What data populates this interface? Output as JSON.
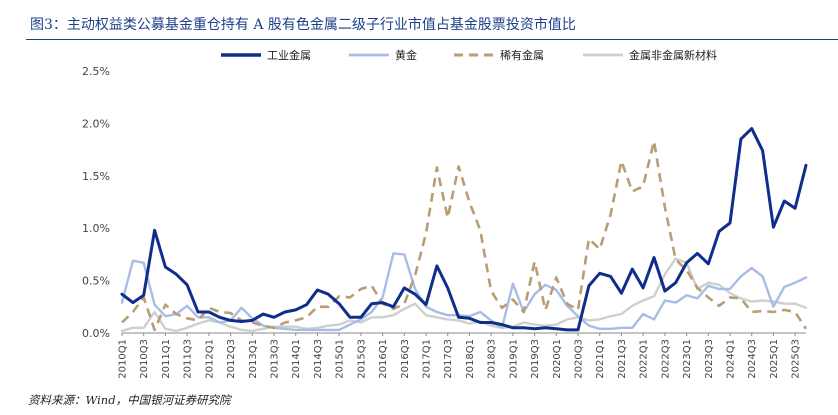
{
  "title": "图3：主动权益类公募基金重仓持有 A 股有色金属二级子行业市值占基金股票投资市值比",
  "source": "资料来源：Wind，中国银河证券研究院",
  "colors": {
    "industrial": "#0f2d8a",
    "gold": "#a8bde6",
    "rare": "#b99d74",
    "nonferrous": "#cfcfcf",
    "title": "#1f3f8a",
    "axis_text": "#444444"
  },
  "chart_data": {
    "type": "line",
    "title": "",
    "xlabel": "",
    "ylabel": "",
    "ylim": [
      0,
      2.5
    ],
    "yticks": [
      "0.0%",
      "0.5%",
      "1.0%",
      "1.5%",
      "2.0%",
      "2.5%"
    ],
    "xtick_labels": [
      "2010Q1",
      "2010Q3",
      "2011Q1",
      "2011Q3",
      "2012Q1",
      "2012Q3",
      "2013Q1",
      "2013Q3",
      "2014Q1",
      "2014Q3",
      "2015Q1",
      "2015Q3",
      "2016Q1",
      "2016Q3",
      "2017Q1",
      "2017Q3",
      "2018Q1",
      "2018Q3",
      "2019Q1",
      "2019Q3",
      "2020Q1",
      "2020Q3",
      "2021Q1",
      "2021Q3",
      "2022Q1",
      "2022Q3",
      "2023Q1",
      "2023Q3",
      "2024Q1",
      "2024Q3",
      "2025Q1",
      "2025Q3"
    ],
    "legend_position": "top",
    "series": [
      {
        "name": "工业金属",
        "style": "solid-thick",
        "values": [
          0.37,
          0.29,
          0.36,
          0.98,
          0.63,
          0.56,
          0.46,
          0.2,
          0.2,
          0.15,
          0.12,
          0.11,
          0.12,
          0.18,
          0.15,
          0.2,
          0.22,
          0.27,
          0.41,
          0.37,
          0.28,
          0.15,
          0.15,
          0.28,
          0.29,
          0.25,
          0.43,
          0.37,
          0.27,
          0.64,
          0.43,
          0.15,
          0.14,
          0.1,
          0.1,
          0.08,
          0.05,
          0.05,
          0.04,
          0.05,
          0.04,
          0.03,
          0.03,
          0.45,
          0.57,
          0.54,
          0.38,
          0.61,
          0.43,
          0.72,
          0.4,
          0.48,
          0.67,
          0.76,
          0.66,
          0.97,
          1.05,
          1.85,
          1.95,
          1.74,
          1.01,
          1.26,
          1.19,
          1.6
        ]
      },
      {
        "name": "黄金",
        "style": "solid",
        "values": [
          0.29,
          0.69,
          0.67,
          0.27,
          0.16,
          0.18,
          0.26,
          0.15,
          0.15,
          0.1,
          0.12,
          0.24,
          0.14,
          0.07,
          0.05,
          0.04,
          0.03,
          0.03,
          0.03,
          0.03,
          0.03,
          0.08,
          0.13,
          0.2,
          0.34,
          0.76,
          0.75,
          0.42,
          0.25,
          0.2,
          0.17,
          0.17,
          0.16,
          0.2,
          0.12,
          0.05,
          0.47,
          0.2,
          0.37,
          0.46,
          0.41,
          0.26,
          0.16,
          0.07,
          0.04,
          0.04,
          0.05,
          0.05,
          0.18,
          0.13,
          0.31,
          0.29,
          0.36,
          0.33,
          0.45,
          0.42,
          0.42,
          0.54,
          0.62,
          0.54,
          0.25,
          0.44,
          0.48,
          0.53
        ]
      },
      {
        "name": "稀有金属",
        "style": "dashed",
        "values": [
          0.1,
          0.2,
          0.34,
          0.03,
          0.27,
          0.18,
          0.14,
          0.12,
          0.24,
          0.2,
          0.19,
          0.12,
          0.1,
          0.07,
          0.05,
          0.1,
          0.12,
          0.15,
          0.25,
          0.25,
          0.35,
          0.34,
          0.42,
          0.45,
          0.28,
          0.23,
          0.28,
          0.55,
          0.95,
          1.58,
          1.1,
          1.59,
          1.25,
          0.98,
          0.4,
          0.24,
          0.32,
          0.2,
          0.68,
          0.22,
          0.53,
          0.28,
          0.22,
          0.9,
          0.8,
          1.13,
          1.64,
          1.35,
          1.4,
          1.83,
          1.2,
          0.7,
          0.6,
          0.43,
          0.34,
          0.26,
          0.34,
          0.33,
          0.2,
          0.21,
          0.2,
          0.22,
          0.2,
          0.04
        ]
      },
      {
        "name": "金属非金属新材料",
        "style": "solid",
        "values": [
          0.02,
          0.05,
          0.05,
          0.2,
          0.04,
          0.02,
          0.05,
          0.09,
          0.12,
          0.1,
          0.06,
          0.03,
          0.02,
          0.04,
          0.06,
          0.06,
          0.06,
          0.04,
          0.05,
          0.07,
          0.08,
          0.12,
          0.1,
          0.15,
          0.15,
          0.17,
          0.23,
          0.28,
          0.17,
          0.15,
          0.13,
          0.12,
          0.09,
          0.11,
          0.07,
          0.05,
          0.06,
          0.1,
          0.08,
          0.07,
          0.08,
          0.13,
          0.15,
          0.12,
          0.13,
          0.16,
          0.18,
          0.26,
          0.31,
          0.35,
          0.56,
          0.71,
          0.67,
          0.42,
          0.48,
          0.46,
          0.38,
          0.33,
          0.3,
          0.31,
          0.3,
          0.28,
          0.28,
          0.24
        ]
      }
    ]
  }
}
